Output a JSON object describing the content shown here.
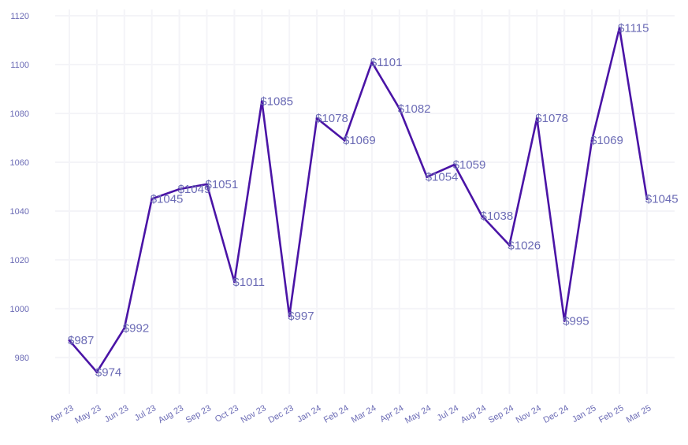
{
  "chart_data": {
    "type": "line",
    "title": "",
    "xlabel": "",
    "ylabel": "",
    "categories": [
      "Apr 23",
      "May 23",
      "Jun 23",
      "Jul 23",
      "Aug 23",
      "Sep 23",
      "Oct 23",
      "Nov 23",
      "Dec 23",
      "Jan 24",
      "Feb 24",
      "Mar 24",
      "Apr 24",
      "May 24",
      "Jul 24",
      "Aug 24",
      "Sep 24",
      "Nov 24",
      "Dec 24",
      "Jan 25",
      "Feb 25",
      "Mar 25"
    ],
    "series": [
      {
        "values": [
          987,
          974,
          992,
          1045,
          1049,
          1051,
          1011,
          1085,
          997,
          1078,
          1069,
          1101,
          1082,
          1054,
          1059,
          1038,
          1026,
          1078,
          995,
          1069,
          1115,
          1045
        ],
        "labels": [
          "$987",
          "$974",
          "$992",
          "$1045",
          "$1049",
          "$1051",
          "$1011",
          "$1085",
          "$997",
          "$1078",
          "$1069",
          "$1101",
          "$1082",
          "$1054",
          "$1059",
          "$1038",
          "$1026",
          "$1078",
          "$995",
          "$1069",
          "$1115",
          "$1045"
        ]
      }
    ],
    "yticks": [
      980,
      1000,
      1020,
      1040,
      1060,
      1080,
      1100,
      1120
    ],
    "ylim": [
      969,
      1120
    ],
    "grid": true,
    "legend": "none",
    "colors": {
      "line": "#4a14a6",
      "text": "#6b6bb5",
      "grid": "#f4f4f8"
    }
  }
}
